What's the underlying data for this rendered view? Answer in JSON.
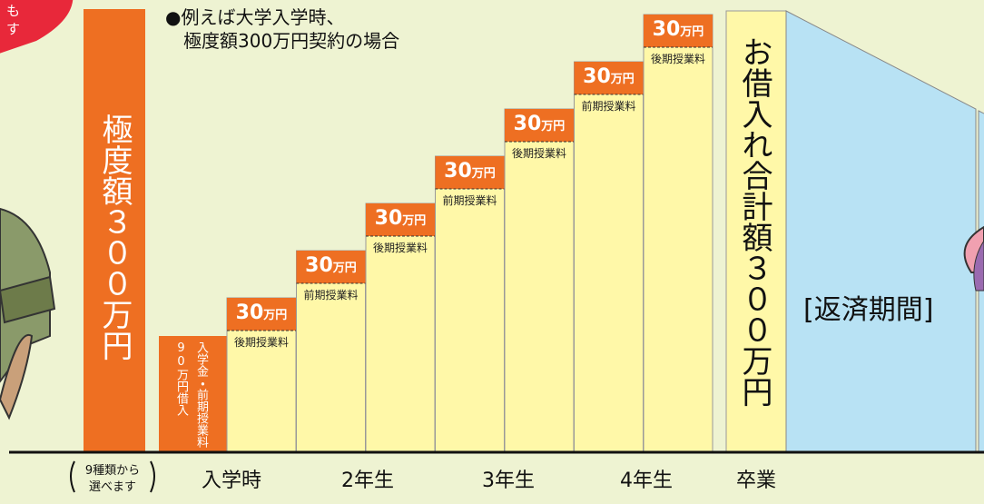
{
  "callout": {
    "lines": [
      "も",
      "す"
    ]
  },
  "limit_bar": {
    "label": "極度額３００万円"
  },
  "note": {
    "lines": [
      "●例えば大学入学時、",
      "極度額300万円契約の場合"
    ]
  },
  "first_loan": {
    "lines": [
      "入学金・前期授業料",
      "90万円借入"
    ]
  },
  "installments": [
    {
      "amount": "30",
      "unit": "万円",
      "caption": "後期授業料"
    },
    {
      "amount": "30",
      "unit": "万円",
      "caption": "前期授業料"
    },
    {
      "amount": "30",
      "unit": "万円",
      "caption": "後期授業料"
    },
    {
      "amount": "30",
      "unit": "万円",
      "caption": "前期授業料"
    },
    {
      "amount": "30",
      "unit": "万円",
      "caption": "後期授業料"
    },
    {
      "amount": "30",
      "unit": "万円",
      "caption": "前期授業料"
    },
    {
      "amount": "30",
      "unit": "万円",
      "caption": "後期授業料"
    }
  ],
  "total_bar": {
    "label": "お借入れ合計額３００万円"
  },
  "repayment": {
    "label": "[返済期間]"
  },
  "x_labels": {
    "choice": [
      "9種類から",
      "選べます"
    ],
    "stages": [
      "入学時",
      "2年生",
      "3年生",
      "4年生",
      "卒業"
    ]
  }
}
